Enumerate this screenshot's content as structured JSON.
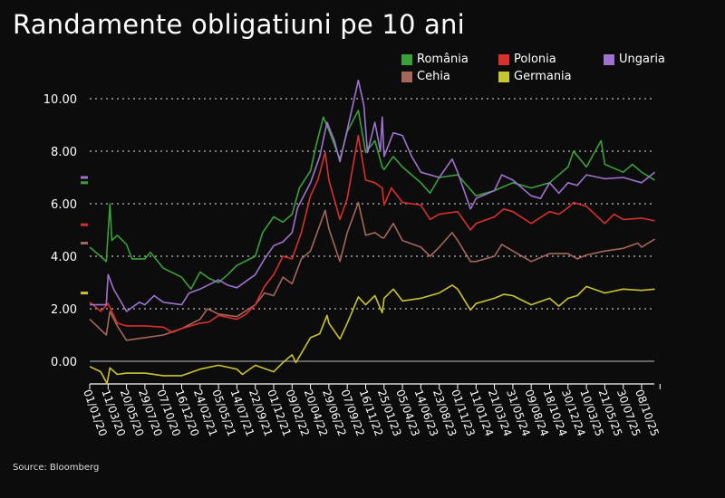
{
  "chart_data": {
    "type": "line",
    "title": "Randamente obligatiuni pe 10 ani",
    "source": "Source: Bloomberg",
    "xlabel": "",
    "ylabel": "",
    "x_unit": "days since 01/01/20",
    "xlim": [
      0,
      2150
    ],
    "ylim": [
      -0.85,
      10.7
    ],
    "y_ticks": [
      0,
      2,
      4,
      6,
      8,
      10
    ],
    "y_tick_labels": [
      "0.00",
      "2.00",
      "4.00",
      "6.00",
      "8.00",
      "10.00"
    ],
    "grid": "horizontal dotted",
    "legend_position": "top-right",
    "x_ticks": [
      0,
      70,
      140,
      210,
      280,
      350,
      420,
      490,
      560,
      630,
      700,
      770,
      840,
      910,
      980,
      1050,
      1120,
      1190,
      1260,
      1330,
      1400,
      1470,
      1540,
      1610,
      1680,
      1750,
      1820,
      1890,
      1960,
      2030,
      2100
    ],
    "x_tick_labels": [
      "01/01/20",
      "11/03/20",
      "20/05/20",
      "29/07/20",
      "07/10/20",
      "16/12/20",
      "24/02/21",
      "05/05/21",
      "14/07/21",
      "22/09/21",
      "01/12/21",
      "09/02/22",
      "20/04/22",
      "29/06/22",
      "07/09/22",
      "16/11/22",
      "25/01/23",
      "05/04/23",
      "14/06/23",
      "23/08/23",
      "01/11/23",
      "11/01/24",
      "21/03/24",
      "31/05/24",
      "09/08/24",
      "18/10/24",
      "30/12/24",
      "10/03/25",
      "21/05/25",
      "30/07/25",
      "08/10/25"
    ],
    "series": [
      {
        "name": "Germania",
        "color": "#c9c431",
        "last": 2.6,
        "points": [
          [
            0,
            -0.2
          ],
          [
            42,
            -0.4
          ],
          [
            66,
            -0.85
          ],
          [
            77,
            -0.25
          ],
          [
            105,
            -0.5
          ],
          [
            140,
            -0.45
          ],
          [
            210,
            -0.45
          ],
          [
            280,
            -0.55
          ],
          [
            350,
            -0.55
          ],
          [
            420,
            -0.3
          ],
          [
            490,
            -0.15
          ],
          [
            560,
            -0.3
          ],
          [
            581,
            -0.5
          ],
          [
            630,
            -0.15
          ],
          [
            700,
            -0.4
          ],
          [
            735,
            -0.05
          ],
          [
            770,
            0.25
          ],
          [
            784,
            -0.05
          ],
          [
            805,
            0.3
          ],
          [
            840,
            0.9
          ],
          [
            875,
            1.05
          ],
          [
            903,
            1.75
          ],
          [
            910,
            1.45
          ],
          [
            952,
            0.85
          ],
          [
            980,
            1.45
          ],
          [
            1022,
            2.45
          ],
          [
            1050,
            2.15
          ],
          [
            1085,
            2.5
          ],
          [
            1113,
            1.85
          ],
          [
            1120,
            2.4
          ],
          [
            1155,
            2.75
          ],
          [
            1190,
            2.3
          ],
          [
            1260,
            2.4
          ],
          [
            1330,
            2.6
          ],
          [
            1379,
            2.9
          ],
          [
            1400,
            2.75
          ],
          [
            1449,
            1.95
          ],
          [
            1470,
            2.2
          ],
          [
            1540,
            2.4
          ],
          [
            1575,
            2.55
          ],
          [
            1610,
            2.5
          ],
          [
            1680,
            2.15
          ],
          [
            1750,
            2.4
          ],
          [
            1785,
            2.1
          ],
          [
            1820,
            2.4
          ],
          [
            1855,
            2.5
          ],
          [
            1890,
            2.85
          ],
          [
            1960,
            2.6
          ],
          [
            2030,
            2.75
          ],
          [
            2100,
            2.7
          ],
          [
            2150,
            2.75
          ]
        ]
      },
      {
        "name": "Cehia",
        "color": "#a4675a",
        "last": 4.5,
        "points": [
          [
            0,
            1.6
          ],
          [
            63,
            1.0
          ],
          [
            77,
            1.9
          ],
          [
            105,
            1.35
          ],
          [
            140,
            0.8
          ],
          [
            210,
            0.9
          ],
          [
            280,
            1.0
          ],
          [
            350,
            1.25
          ],
          [
            420,
            1.6
          ],
          [
            448,
            2.0
          ],
          [
            490,
            1.8
          ],
          [
            560,
            1.7
          ],
          [
            630,
            2.15
          ],
          [
            665,
            2.6
          ],
          [
            700,
            2.5
          ],
          [
            735,
            3.2
          ],
          [
            770,
            2.95
          ],
          [
            805,
            3.9
          ],
          [
            840,
            4.2
          ],
          [
            896,
            5.75
          ],
          [
            910,
            5.05
          ],
          [
            952,
            3.8
          ],
          [
            980,
            4.9
          ],
          [
            1022,
            6.05
          ],
          [
            1050,
            4.8
          ],
          [
            1085,
            4.9
          ],
          [
            1113,
            4.7
          ],
          [
            1120,
            4.7
          ],
          [
            1155,
            5.25
          ],
          [
            1190,
            4.6
          ],
          [
            1260,
            4.35
          ],
          [
            1295,
            4.0
          ],
          [
            1330,
            4.35
          ],
          [
            1379,
            4.9
          ],
          [
            1400,
            4.6
          ],
          [
            1449,
            3.8
          ],
          [
            1470,
            3.8
          ],
          [
            1540,
            4.0
          ],
          [
            1568,
            4.45
          ],
          [
            1610,
            4.2
          ],
          [
            1680,
            3.8
          ],
          [
            1750,
            4.1
          ],
          [
            1820,
            4.1
          ],
          [
            1855,
            3.9
          ],
          [
            1890,
            4.05
          ],
          [
            1960,
            4.2
          ],
          [
            2030,
            4.3
          ],
          [
            2086,
            4.5
          ],
          [
            2100,
            4.35
          ],
          [
            2150,
            4.65
          ]
        ]
      },
      {
        "name": "Polonia",
        "color": "#d8312d",
        "last": 5.2,
        "points": [
          [
            0,
            2.25
          ],
          [
            42,
            1.9
          ],
          [
            70,
            2.2
          ],
          [
            105,
            1.45
          ],
          [
            140,
            1.35
          ],
          [
            210,
            1.35
          ],
          [
            280,
            1.3
          ],
          [
            315,
            1.1
          ],
          [
            350,
            1.25
          ],
          [
            420,
            1.45
          ],
          [
            455,
            1.5
          ],
          [
            490,
            1.75
          ],
          [
            560,
            1.6
          ],
          [
            595,
            1.8
          ],
          [
            630,
            2.15
          ],
          [
            665,
            2.85
          ],
          [
            700,
            3.3
          ],
          [
            735,
            4.0
          ],
          [
            770,
            3.9
          ],
          [
            805,
            4.9
          ],
          [
            840,
            6.3
          ],
          [
            868,
            6.9
          ],
          [
            896,
            7.95
          ],
          [
            910,
            6.9
          ],
          [
            952,
            5.4
          ],
          [
            980,
            6.2
          ],
          [
            1022,
            8.6
          ],
          [
            1050,
            6.9
          ],
          [
            1085,
            6.8
          ],
          [
            1113,
            6.6
          ],
          [
            1120,
            5.95
          ],
          [
            1148,
            6.6
          ],
          [
            1190,
            6.05
          ],
          [
            1260,
            5.95
          ],
          [
            1295,
            5.4
          ],
          [
            1330,
            5.6
          ],
          [
            1400,
            5.7
          ],
          [
            1449,
            5.0
          ],
          [
            1470,
            5.25
          ],
          [
            1540,
            5.5
          ],
          [
            1575,
            5.8
          ],
          [
            1610,
            5.7
          ],
          [
            1680,
            5.25
          ],
          [
            1750,
            5.7
          ],
          [
            1785,
            5.6
          ],
          [
            1820,
            5.85
          ],
          [
            1841,
            6.05
          ],
          [
            1890,
            5.9
          ],
          [
            1960,
            5.25
          ],
          [
            1995,
            5.6
          ],
          [
            2030,
            5.4
          ],
          [
            2100,
            5.45
          ],
          [
            2150,
            5.35
          ]
        ]
      },
      {
        "name": "România",
        "color": "#3aa13a",
        "last": 6.8,
        "points": [
          [
            0,
            4.35
          ],
          [
            35,
            4.05
          ],
          [
            63,
            3.8
          ],
          [
            77,
            6.0
          ],
          [
            84,
            4.6
          ],
          [
            105,
            4.8
          ],
          [
            140,
            4.45
          ],
          [
            161,
            3.9
          ],
          [
            210,
            3.9
          ],
          [
            231,
            4.15
          ],
          [
            280,
            3.55
          ],
          [
            350,
            3.2
          ],
          [
            385,
            2.75
          ],
          [
            420,
            3.4
          ],
          [
            455,
            3.15
          ],
          [
            490,
            3.0
          ],
          [
            525,
            3.3
          ],
          [
            560,
            3.65
          ],
          [
            630,
            4.0
          ],
          [
            658,
            4.9
          ],
          [
            700,
            5.5
          ],
          [
            735,
            5.3
          ],
          [
            770,
            5.6
          ],
          [
            798,
            6.6
          ],
          [
            840,
            7.25
          ],
          [
            861,
            8.2
          ],
          [
            889,
            9.3
          ],
          [
            910,
            8.8
          ],
          [
            952,
            7.7
          ],
          [
            980,
            8.75
          ],
          [
            1022,
            9.55
          ],
          [
            1050,
            7.95
          ],
          [
            1085,
            8.4
          ],
          [
            1113,
            7.4
          ],
          [
            1120,
            7.3
          ],
          [
            1155,
            7.8
          ],
          [
            1190,
            7.4
          ],
          [
            1260,
            6.8
          ],
          [
            1295,
            6.4
          ],
          [
            1330,
            7.0
          ],
          [
            1400,
            7.1
          ],
          [
            1470,
            6.3
          ],
          [
            1540,
            6.5
          ],
          [
            1610,
            6.8
          ],
          [
            1680,
            6.6
          ],
          [
            1750,
            6.8
          ],
          [
            1820,
            7.4
          ],
          [
            1841,
            8.0
          ],
          [
            1890,
            7.4
          ],
          [
            1946,
            8.4
          ],
          [
            1960,
            7.5
          ],
          [
            2030,
            7.2
          ],
          [
            2065,
            7.5
          ],
          [
            2100,
            7.2
          ],
          [
            2150,
            6.9
          ]
        ]
      },
      {
        "name": "Ungaria",
        "color": "#9f72cf",
        "last": 7.0,
        "points": [
          [
            0,
            2.15
          ],
          [
            63,
            2.15
          ],
          [
            70,
            3.3
          ],
          [
            91,
            2.75
          ],
          [
            140,
            1.9
          ],
          [
            189,
            2.25
          ],
          [
            210,
            2.15
          ],
          [
            245,
            2.5
          ],
          [
            280,
            2.25
          ],
          [
            350,
            2.15
          ],
          [
            378,
            2.6
          ],
          [
            420,
            2.75
          ],
          [
            490,
            3.1
          ],
          [
            525,
            2.9
          ],
          [
            560,
            2.8
          ],
          [
            630,
            3.3
          ],
          [
            665,
            3.9
          ],
          [
            700,
            4.4
          ],
          [
            735,
            4.55
          ],
          [
            770,
            4.9
          ],
          [
            791,
            5.85
          ],
          [
            840,
            6.8
          ],
          [
            875,
            7.8
          ],
          [
            903,
            9.1
          ],
          [
            931,
            8.4
          ],
          [
            952,
            7.6
          ],
          [
            1001,
            9.75
          ],
          [
            1022,
            10.7
          ],
          [
            1043,
            9.75
          ],
          [
            1057,
            7.95
          ],
          [
            1085,
            9.1
          ],
          [
            1106,
            8.0
          ],
          [
            1113,
            9.3
          ],
          [
            1120,
            7.8
          ],
          [
            1155,
            8.7
          ],
          [
            1190,
            8.6
          ],
          [
            1225,
            7.8
          ],
          [
            1260,
            7.2
          ],
          [
            1330,
            7.0
          ],
          [
            1379,
            7.7
          ],
          [
            1400,
            7.2
          ],
          [
            1449,
            5.8
          ],
          [
            1470,
            6.2
          ],
          [
            1540,
            6.5
          ],
          [
            1568,
            7.1
          ],
          [
            1610,
            6.9
          ],
          [
            1680,
            6.3
          ],
          [
            1715,
            6.2
          ],
          [
            1750,
            6.8
          ],
          [
            1785,
            6.4
          ],
          [
            1820,
            6.8
          ],
          [
            1855,
            6.7
          ],
          [
            1890,
            7.1
          ],
          [
            1960,
            6.95
          ],
          [
            2030,
            7.0
          ],
          [
            2100,
            6.8
          ],
          [
            2150,
            7.2
          ]
        ]
      }
    ],
    "legend": [
      {
        "name": "România",
        "color": "#3aa13a"
      },
      {
        "name": "Polonia",
        "color": "#d8312d"
      },
      {
        "name": "Ungaria",
        "color": "#9f72cf"
      },
      {
        "name": "Cehia",
        "color": "#a4675a"
      },
      {
        "name": "Germania",
        "color": "#c9c431"
      }
    ]
  }
}
